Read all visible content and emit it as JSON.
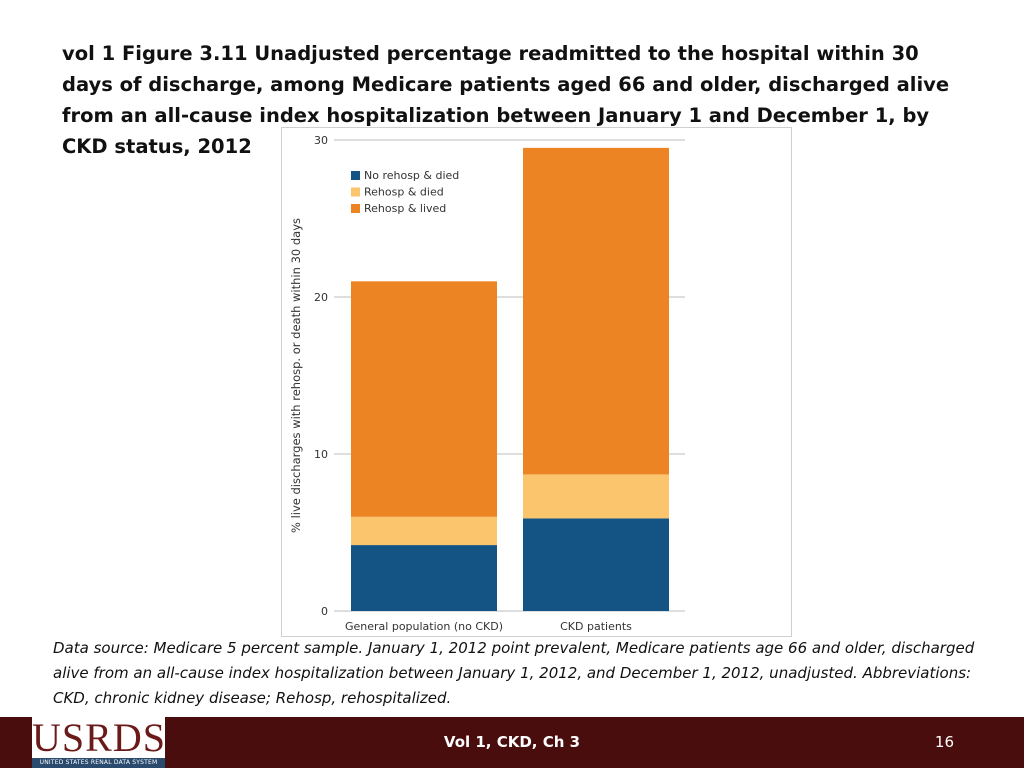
{
  "slide": {
    "title": "vol 1 Figure 3.11  Unadjusted percentage readmitted to the hospital within 30 days of discharge, among Medicare patients aged 66 and older, discharged alive from an all-cause index hospitalization between January 1 and December 1, by CKD status, 2012",
    "data_source": "Data source: Medicare 5 percent sample. January 1, 2012 point prevalent, Medicare patients age 66 and older, discharged alive from an all-cause index hospitalization between January 1, 2012, and December 1, 2012, unadjusted. Abbreviations: CKD, chronic kidney disease; Rehosp, rehospitalized."
  },
  "footer": {
    "center_text": "Vol 1, CKD, Ch 3",
    "page_number": "16",
    "logo_text": "USRDS",
    "logo_subtext": "UNITED STATES RENAL DATA SYSTEM"
  },
  "colors": {
    "no_rehosp_died": "#145484",
    "rehosp_died": "#fbc56d",
    "rehosp_lived": "#ec8424",
    "footer_bar": "#4a0d0d"
  },
  "chart_data": {
    "type": "bar",
    "stacked": true,
    "categories": [
      "General population (no CKD)",
      "CKD patients"
    ],
    "series": [
      {
        "name": "No rehosp & died",
        "values": [
          4.2,
          5.9
        ]
      },
      {
        "name": "Rehosp & died",
        "values": [
          1.8,
          2.8
        ]
      },
      {
        "name": "Rehosp & lived",
        "values": [
          15.0,
          20.8
        ]
      }
    ],
    "title": "",
    "xlabel": "",
    "ylabel": "% live discharges with rehosp. or death within 30 days",
    "ylim": [
      0,
      30
    ],
    "yticks": [
      0,
      10,
      20,
      30
    ],
    "grid": true,
    "legend_position": "top-left"
  }
}
